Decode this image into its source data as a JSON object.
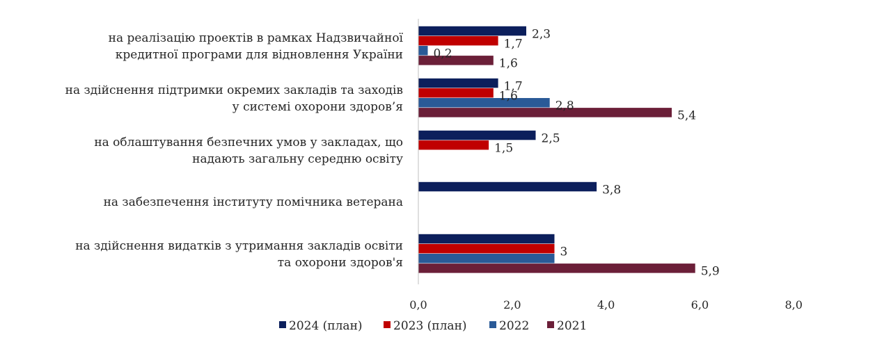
{
  "chart_data": {
    "type": "bar",
    "orientation": "horizontal",
    "categories": [
      [
        "на реалізацію проектів в рамках Надзвичайної",
        "кредитної програми для відновлення України"
      ],
      [
        "на здійснення підтримки окремих закладів та заходів",
        "у системі охорони здоров’я"
      ],
      [
        "на облаштування безпечних умов у закладах, що",
        "надають загальну середню освіту"
      ],
      [
        "на забезпечення інституту помічника ветерана"
      ],
      [
        "на здійснення видатків з утримання закладів освіти",
        "та охорони здоров'я"
      ]
    ],
    "series": [
      {
        "name": "2024 (план)",
        "color": "#0c1f5c",
        "values": [
          2.3,
          1.7,
          2.5,
          3.8,
          2.9
        ],
        "labels": [
          "2,3",
          "1,7",
          "2,5",
          "3,8",
          ""
        ]
      },
      {
        "name": "2023 (план)",
        "color": "#c00000",
        "values": [
          1.7,
          1.6,
          1.5,
          null,
          2.9
        ],
        "labels": [
          "1,7",
          "1,6",
          "1,5",
          "",
          "3"
        ]
      },
      {
        "name": "2022",
        "color": "#2a5a97",
        "values": [
          0.2,
          2.8,
          null,
          null,
          2.9
        ],
        "labels": [
          "0,2",
          "2,8",
          "",
          "",
          ""
        ]
      },
      {
        "name": "2021",
        "color": "#6b1f38",
        "values": [
          1.6,
          5.4,
          null,
          null,
          5.9
        ],
        "labels": [
          "1,6",
          "5,4",
          "",
          "",
          "5,9"
        ]
      }
    ],
    "xlim": [
      0,
      8
    ],
    "xticks": [
      0,
      2,
      4,
      6,
      8
    ],
    "xtick_labels": [
      "0,0",
      "2,0",
      "4,0",
      "6,0",
      "8,0"
    ],
    "legend_position": "bottom",
    "grid": false
  }
}
